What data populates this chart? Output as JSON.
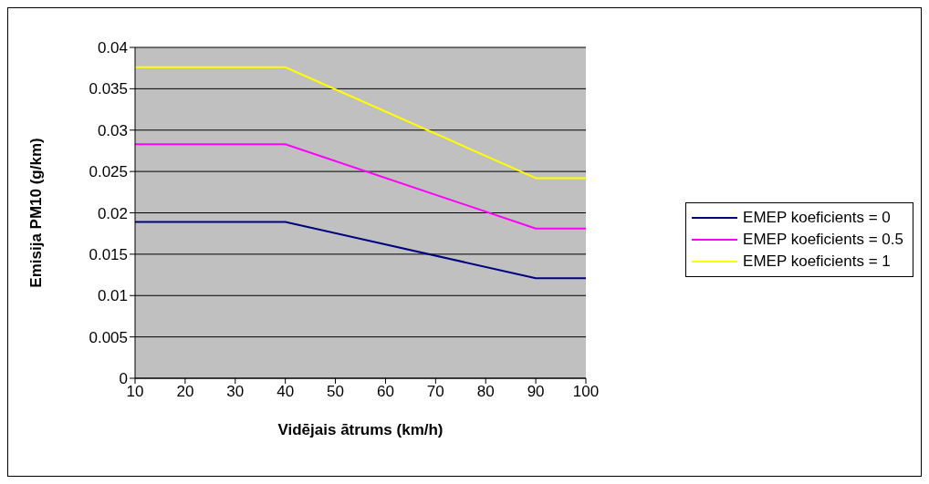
{
  "chart_data": {
    "type": "line",
    "xlabel": "Vidējais ātrums (km/h)",
    "ylabel": "Emisija PM10 (g/km)",
    "x": [
      10,
      40,
      90,
      100
    ],
    "series": [
      {
        "name": "EMEP koeficients = 0",
        "color": "#000080",
        "values": [
          0.0189,
          0.0189,
          0.0121,
          0.0121
        ]
      },
      {
        "name": "EMEP koeficients = 0.5",
        "color": "#ff00ff",
        "values": [
          0.0283,
          0.0283,
          0.0181,
          0.0181
        ]
      },
      {
        "name": "EMEP koeficients = 1",
        "color": "#ffff00",
        "values": [
          0.0376,
          0.0376,
          0.0242,
          0.0242
        ]
      }
    ],
    "xlim": [
      10,
      100
    ],
    "xticks": [
      10,
      20,
      30,
      40,
      50,
      60,
      70,
      80,
      90,
      100
    ],
    "ylim": [
      0,
      0.04
    ],
    "yticks": [
      0,
      0.005,
      0.01,
      0.015,
      0.02,
      0.025,
      0.03,
      0.035,
      0.04
    ],
    "grid": "y",
    "legend": "right",
    "marker": "none",
    "line_style": "solid"
  }
}
